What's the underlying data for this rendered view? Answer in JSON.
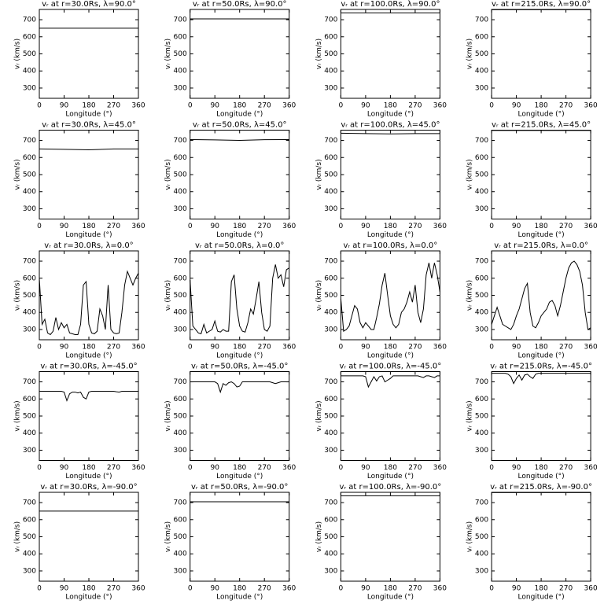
{
  "chart_data": [
    {
      "type": "line",
      "title": "vᵣ at r=30.0Rs, λ=90.0°",
      "xlabel": "Longitude (°)",
      "ylabel": "vᵣ (km/s)",
      "x": [
        0,
        360
      ],
      "values": [
        650,
        650
      ],
      "xlim": [
        0,
        360
      ],
      "ylim": [
        240,
        760
      ],
      "xticks": [
        0,
        90,
        180,
        270,
        360
      ],
      "yticks": [
        300,
        400,
        500,
        600,
        700
      ],
      "color": "#000000"
    },
    {
      "type": "line",
      "title": "vᵣ at r=50.0Rs, λ=90.0°",
      "xlabel": "Longitude (°)",
      "ylabel": "vᵣ (km/s)",
      "x": [
        0,
        360
      ],
      "values": [
        705,
        705
      ],
      "xlim": [
        0,
        360
      ],
      "ylim": [
        240,
        760
      ],
      "xticks": [
        0,
        90,
        180,
        270,
        360
      ],
      "yticks": [
        300,
        400,
        500,
        600,
        700
      ],
      "color": "#000000"
    },
    {
      "type": "line",
      "title": "vᵣ at r=100.0Rs, λ=90.0°",
      "xlabel": "Longitude (°)",
      "ylabel": "vᵣ (km/s)",
      "x": [
        0,
        360
      ],
      "values": [
        740,
        740
      ],
      "xlim": [
        0,
        360
      ],
      "ylim": [
        240,
        760
      ],
      "xticks": [
        0,
        90,
        180,
        270,
        360
      ],
      "yticks": [
        300,
        400,
        500,
        600,
        700
      ],
      "color": "#000000"
    },
    {
      "type": "line",
      "title": "vᵣ at r=215.0Rs, λ=90.0°",
      "xlabel": "Longitude (°)",
      "ylabel": "vᵣ (km/s)",
      "x": [
        0,
        360
      ],
      "values": [
        758,
        758
      ],
      "xlim": [
        0,
        360
      ],
      "ylim": [
        240,
        760
      ],
      "xticks": [
        0,
        90,
        180,
        270,
        360
      ],
      "yticks": [
        300,
        400,
        500,
        600,
        700
      ],
      "color": "#000000"
    },
    {
      "type": "line",
      "title": "vᵣ at r=30.0Rs, λ=45.0°",
      "xlabel": "Longitude (°)",
      "ylabel": "vᵣ (km/s)",
      "x": [
        0,
        90,
        180,
        270,
        360
      ],
      "values": [
        650,
        648,
        645,
        650,
        650
      ],
      "xlim": [
        0,
        360
      ],
      "ylim": [
        240,
        760
      ],
      "xticks": [
        0,
        90,
        180,
        270,
        360
      ],
      "yticks": [
        300,
        400,
        500,
        600,
        700
      ],
      "color": "#000000"
    },
    {
      "type": "line",
      "title": "vᵣ at r=50.0Rs, λ=45.0°",
      "xlabel": "Longitude (°)",
      "ylabel": "vᵣ (km/s)",
      "x": [
        0,
        90,
        180,
        270,
        360
      ],
      "values": [
        705,
        703,
        700,
        704,
        705
      ],
      "xlim": [
        0,
        360
      ],
      "ylim": [
        240,
        760
      ],
      "xticks": [
        0,
        90,
        180,
        270,
        360
      ],
      "yticks": [
        300,
        400,
        500,
        600,
        700
      ],
      "color": "#000000"
    },
    {
      "type": "line",
      "title": "vᵣ at r=100.0Rs, λ=45.0°",
      "xlabel": "Longitude (°)",
      "ylabel": "vᵣ (km/s)",
      "x": [
        0,
        90,
        180,
        270,
        360
      ],
      "values": [
        742,
        740,
        738,
        740,
        740
      ],
      "xlim": [
        0,
        360
      ],
      "ylim": [
        240,
        760
      ],
      "xticks": [
        0,
        90,
        180,
        270,
        360
      ],
      "yticks": [
        300,
        400,
        500,
        600,
        700
      ],
      "color": "#000000"
    },
    {
      "type": "line",
      "title": "vᵣ at r=215.0Rs, λ=45.0°",
      "xlabel": "Longitude (°)",
      "ylabel": "vᵣ (km/s)",
      "x": [
        0,
        360
      ],
      "values": [
        758,
        758
      ],
      "xlim": [
        0,
        360
      ],
      "ylim": [
        240,
        760
      ],
      "xticks": [
        0,
        90,
        180,
        270,
        360
      ],
      "yticks": [
        300,
        400,
        500,
        600,
        700
      ],
      "color": "#000000"
    },
    {
      "type": "line",
      "title": "vᵣ at r=30.0Rs, λ=0.0°",
      "xlabel": "Longitude (°)",
      "ylabel": "vᵣ (km/s)",
      "x": [
        0,
        10,
        20,
        30,
        40,
        50,
        60,
        70,
        80,
        90,
        100,
        110,
        120,
        130,
        140,
        150,
        160,
        170,
        180,
        190,
        200,
        210,
        220,
        230,
        240,
        250,
        260,
        270,
        280,
        290,
        300,
        310,
        320,
        330,
        340,
        350,
        360
      ],
      "values": [
        600,
        330,
        360,
        280,
        270,
        290,
        370,
        300,
        340,
        310,
        330,
        280,
        275,
        270,
        270,
        330,
        560,
        580,
        330,
        280,
        275,
        290,
        420,
        380,
        300,
        560,
        300,
        280,
        275,
        280,
        400,
        560,
        640,
        600,
        560,
        600,
        630
      ],
      "xlim": [
        0,
        360
      ],
      "ylim": [
        240,
        760
      ],
      "xticks": [
        0,
        90,
        180,
        270,
        360
      ],
      "yticks": [
        300,
        400,
        500,
        600,
        700
      ],
      "color": "#000000"
    },
    {
      "type": "line",
      "title": "vᵣ at r=50.0Rs, λ=0.0°",
      "xlabel": "Longitude (°)",
      "ylabel": "vᵣ (km/s)",
      "x": [
        0,
        10,
        20,
        30,
        40,
        50,
        60,
        70,
        80,
        90,
        100,
        110,
        120,
        130,
        140,
        150,
        160,
        170,
        180,
        190,
        200,
        210,
        220,
        230,
        240,
        250,
        260,
        270,
        280,
        290,
        300,
        310,
        320,
        330,
        340,
        350,
        360
      ],
      "values": [
        590,
        320,
        300,
        280,
        275,
        330,
        280,
        290,
        300,
        350,
        290,
        285,
        300,
        290,
        290,
        580,
        620,
        420,
        320,
        290,
        285,
        340,
        420,
        390,
        480,
        580,
        400,
        300,
        290,
        320,
        600,
        680,
        600,
        620,
        550,
        650,
        660
      ],
      "xlim": [
        0,
        360
      ],
      "ylim": [
        240,
        760
      ],
      "xticks": [
        0,
        90,
        180,
        270,
        360
      ],
      "yticks": [
        300,
        400,
        500,
        600,
        700
      ],
      "color": "#000000"
    },
    {
      "type": "line",
      "title": "vᵣ at r=100.0Rs, λ=0.0°",
      "xlabel": "Longitude (°)",
      "ylabel": "vᵣ (km/s)",
      "x": [
        0,
        10,
        20,
        30,
        40,
        50,
        60,
        70,
        80,
        90,
        100,
        110,
        120,
        130,
        140,
        150,
        160,
        170,
        180,
        190,
        200,
        210,
        220,
        230,
        240,
        250,
        260,
        270,
        280,
        290,
        300,
        310,
        320,
        330,
        340,
        350,
        360
      ],
      "values": [
        480,
        290,
        300,
        320,
        380,
        440,
        420,
        340,
        310,
        340,
        320,
        300,
        300,
        370,
        450,
        560,
        630,
        500,
        380,
        330,
        310,
        330,
        400,
        420,
        460,
        520,
        460,
        560,
        400,
        340,
        420,
        620,
        690,
        600,
        690,
        620,
        520
      ],
      "xlim": [
        0,
        360
      ],
      "ylim": [
        240,
        760
      ],
      "xticks": [
        0,
        90,
        180,
        270,
        360
      ],
      "yticks": [
        300,
        400,
        500,
        600,
        700
      ],
      "color": "#000000"
    },
    {
      "type": "line",
      "title": "vᵣ at r=215.0Rs, λ=0.0°",
      "xlabel": "Longitude (°)",
      "ylabel": "vᵣ (km/s)",
      "x": [
        0,
        10,
        20,
        30,
        40,
        50,
        60,
        70,
        80,
        90,
        100,
        110,
        120,
        130,
        140,
        150,
        160,
        170,
        180,
        190,
        200,
        210,
        220,
        230,
        240,
        250,
        260,
        270,
        280,
        290,
        300,
        310,
        320,
        330,
        340,
        350,
        360
      ],
      "values": [
        330,
        380,
        430,
        380,
        330,
        320,
        310,
        300,
        330,
        380,
        420,
        480,
        540,
        570,
        400,
        320,
        310,
        340,
        380,
        400,
        420,
        460,
        470,
        440,
        380,
        440,
        520,
        600,
        660,
        690,
        700,
        680,
        640,
        560,
        400,
        300,
        310
      ],
      "xlim": [
        0,
        360
      ],
      "ylim": [
        240,
        760
      ],
      "xticks": [
        0,
        90,
        180,
        270,
        360
      ],
      "yticks": [
        300,
        400,
        500,
        600,
        700
      ],
      "color": "#000000"
    },
    {
      "type": "line",
      "title": "vᵣ at r=30.0Rs, λ=-45.0°",
      "xlabel": "Longitude (°)",
      "ylabel": "vᵣ (km/s)",
      "x": [
        0,
        10,
        20,
        30,
        40,
        50,
        60,
        70,
        80,
        90,
        100,
        110,
        120,
        130,
        140,
        150,
        160,
        170,
        180,
        190,
        200,
        210,
        220,
        230,
        240,
        250,
        260,
        270,
        280,
        290,
        300,
        310,
        320,
        330,
        340,
        350,
        360
      ],
      "values": [
        645,
        645,
        645,
        645,
        645,
        645,
        645,
        645,
        645,
        640,
        590,
        630,
        640,
        640,
        635,
        640,
        610,
        600,
        640,
        645,
        645,
        645,
        645,
        645,
        645,
        645,
        645,
        645,
        642,
        640,
        645,
        645,
        645,
        645,
        645,
        645,
        645
      ],
      "xlim": [
        0,
        360
      ],
      "ylim": [
        240,
        760
      ],
      "xticks": [
        0,
        90,
        180,
        270,
        360
      ],
      "yticks": [
        300,
        400,
        500,
        600,
        700
      ],
      "color": "#000000"
    },
    {
      "type": "line",
      "title": "vᵣ at r=50.0Rs, λ=-45.0°",
      "xlabel": "Longitude (°)",
      "ylabel": "vᵣ (km/s)",
      "x": [
        0,
        10,
        20,
        30,
        40,
        50,
        60,
        70,
        80,
        90,
        100,
        110,
        120,
        130,
        140,
        150,
        160,
        170,
        180,
        190,
        200,
        210,
        220,
        230,
        240,
        250,
        260,
        270,
        280,
        290,
        300,
        310,
        320,
        330,
        340,
        350,
        360
      ],
      "values": [
        700,
        700,
        700,
        700,
        700,
        700,
        700,
        700,
        700,
        700,
        690,
        640,
        690,
        680,
        695,
        700,
        690,
        670,
        675,
        700,
        700,
        700,
        700,
        700,
        700,
        700,
        700,
        700,
        700,
        700,
        695,
        690,
        695,
        700,
        700,
        700,
        700
      ],
      "xlim": [
        0,
        360
      ],
      "ylim": [
        240,
        760
      ],
      "xticks": [
        0,
        90,
        180,
        270,
        360
      ],
      "yticks": [
        300,
        400,
        500,
        600,
        700
      ],
      "color": "#000000"
    },
    {
      "type": "line",
      "title": "vᵣ at r=100.0Rs, λ=-45.0°",
      "xlabel": "Longitude (°)",
      "ylabel": "vᵣ (km/s)",
      "x": [
        0,
        10,
        20,
        30,
        40,
        50,
        60,
        70,
        80,
        90,
        100,
        110,
        120,
        130,
        140,
        150,
        160,
        170,
        180,
        190,
        200,
        210,
        220,
        230,
        240,
        250,
        260,
        270,
        280,
        290,
        300,
        310,
        320,
        330,
        340,
        350,
        360
      ],
      "values": [
        735,
        735,
        735,
        735,
        735,
        735,
        735,
        735,
        735,
        730,
        670,
        700,
        730,
        705,
        730,
        735,
        700,
        710,
        720,
        735,
        735,
        735,
        735,
        735,
        735,
        735,
        735,
        735,
        735,
        730,
        725,
        735,
        735,
        730,
        725,
        735,
        735
      ],
      "xlim": [
        0,
        360
      ],
      "ylim": [
        240,
        760
      ],
      "xticks": [
        0,
        90,
        180,
        270,
        360
      ],
      "yticks": [
        300,
        400,
        500,
        600,
        700
      ],
      "color": "#000000"
    },
    {
      "type": "line",
      "title": "vᵣ at r=215.0Rs, λ=-45.0°",
      "xlabel": "Longitude (°)",
      "ylabel": "vᵣ (km/s)",
      "x": [
        0,
        10,
        20,
        30,
        40,
        50,
        60,
        70,
        80,
        90,
        100,
        110,
        120,
        130,
        140,
        150,
        160,
        170,
        180,
        190,
        200,
        210,
        220,
        230,
        240,
        250,
        260,
        270,
        280,
        290,
        300,
        310,
        320,
        330,
        340,
        350,
        360
      ],
      "values": [
        750,
        750,
        750,
        750,
        750,
        750,
        745,
        730,
        690,
        720,
        740,
        710,
        740,
        745,
        730,
        720,
        745,
        750,
        750,
        750,
        750,
        750,
        750,
        750,
        750,
        750,
        750,
        750,
        750,
        750,
        750,
        750,
        750,
        750,
        750,
        750,
        750
      ],
      "xlim": [
        0,
        360
      ],
      "ylim": [
        240,
        760
      ],
      "xticks": [
        0,
        90,
        180,
        270,
        360
      ],
      "yticks": [
        300,
        400,
        500,
        600,
        700
      ],
      "color": "#000000"
    },
    {
      "type": "line",
      "title": "vᵣ at r=30.0Rs, λ=-90.0°",
      "xlabel": "Longitude (°)",
      "ylabel": "vᵣ (km/s)",
      "x": [
        0,
        360
      ],
      "values": [
        650,
        650
      ],
      "xlim": [
        0,
        360
      ],
      "ylim": [
        240,
        760
      ],
      "xticks": [
        0,
        90,
        180,
        270,
        360
      ],
      "yticks": [
        300,
        400,
        500,
        600,
        700
      ],
      "color": "#000000"
    },
    {
      "type": "line",
      "title": "vᵣ at r=50.0Rs, λ=-90.0°",
      "xlabel": "Longitude (°)",
      "ylabel": "vᵣ (km/s)",
      "x": [
        0,
        360
      ],
      "values": [
        705,
        705
      ],
      "xlim": [
        0,
        360
      ],
      "ylim": [
        240,
        760
      ],
      "xticks": [
        0,
        90,
        180,
        270,
        360
      ],
      "yticks": [
        300,
        400,
        500,
        600,
        700
      ],
      "color": "#000000"
    },
    {
      "type": "line",
      "title": "vᵣ at r=100.0Rs, λ=-90.0°",
      "xlabel": "Longitude (°)",
      "ylabel": "vᵣ (km/s)",
      "x": [
        0,
        360
      ],
      "values": [
        740,
        740
      ],
      "xlim": [
        0,
        360
      ],
      "ylim": [
        240,
        760
      ],
      "xticks": [
        0,
        90,
        180,
        270,
        360
      ],
      "yticks": [
        300,
        400,
        500,
        600,
        700
      ],
      "color": "#000000"
    },
    {
      "type": "line",
      "title": "vᵣ at r=215.0Rs, λ=-90.0°",
      "xlabel": "Longitude (°)",
      "ylabel": "vᵣ (km/s)",
      "x": [
        0,
        360
      ],
      "values": [
        758,
        758
      ],
      "xlim": [
        0,
        360
      ],
      "ylim": [
        240,
        760
      ],
      "xticks": [
        0,
        90,
        180,
        270,
        360
      ],
      "yticks": [
        300,
        400,
        500,
        600,
        700
      ],
      "color": "#000000"
    }
  ]
}
